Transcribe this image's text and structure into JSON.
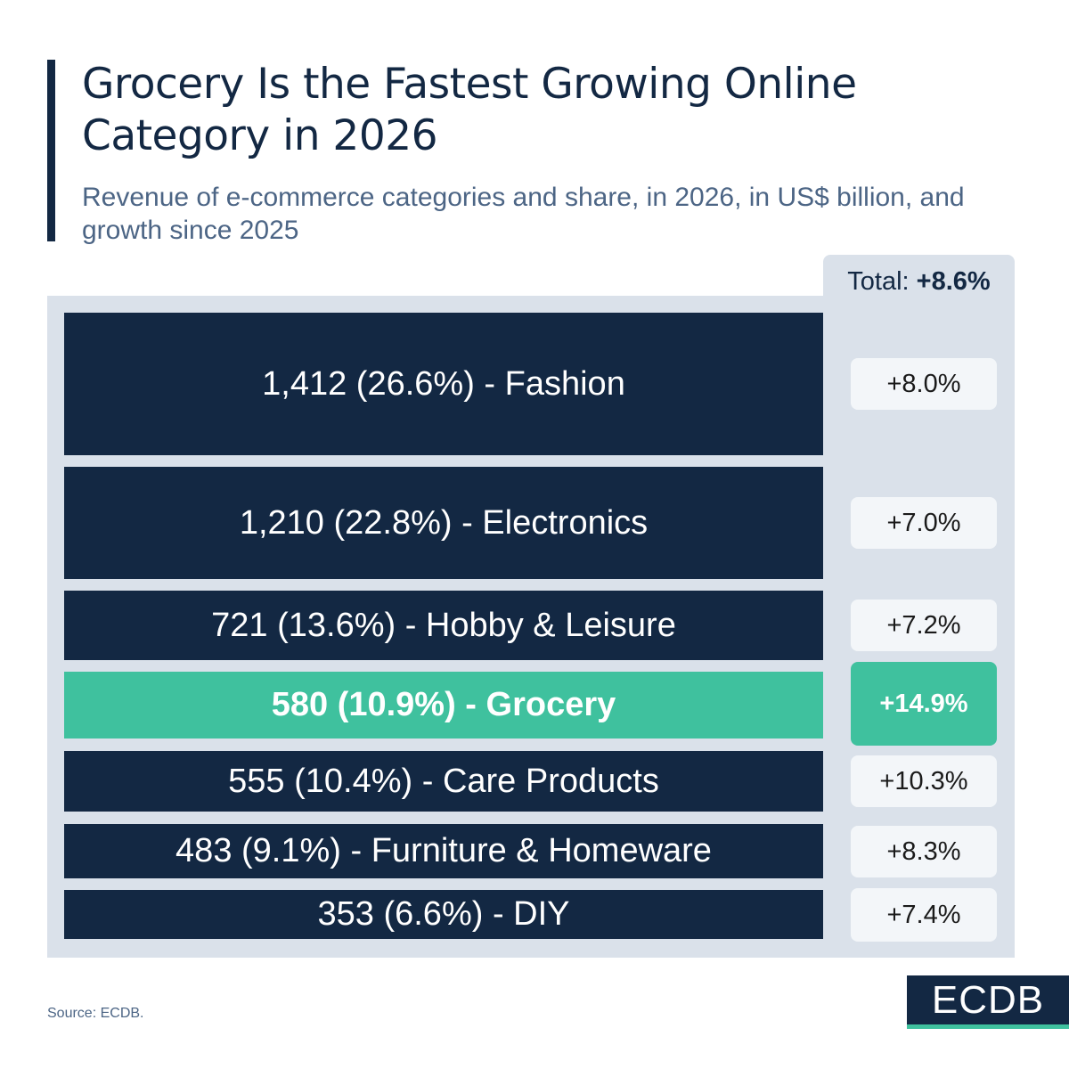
{
  "header": {
    "title": "Grocery Is the Fastest Growing Online Category in 2026",
    "subtitle": "Revenue of e-commerce categories and share, in 2026, in US$ billion, and growth since 2025"
  },
  "total": {
    "label": "Total:",
    "value": "+8.6%"
  },
  "colors": {
    "navy": "#132843",
    "highlight": "#3FC19E",
    "panel": "#DAE1EA",
    "growth_box": "#F3F6F9"
  },
  "chart_data": {
    "type": "bar",
    "title": "Grocery Is the Fastest Growing Online Category in 2026",
    "subtitle": "Revenue of e-commerce categories and share, in 2026, in US$ billion, and growth since 2025",
    "unit": "US$ billion",
    "categories": [
      "Fashion",
      "Electronics",
      "Hobby & Leisure",
      "Grocery",
      "Care Products",
      "Furniture & Homeware",
      "DIY"
    ],
    "series": [
      {
        "name": "Revenue 2026",
        "values": [
          1412,
          1210,
          721,
          580,
          555,
          483,
          353
        ]
      },
      {
        "name": "Share (%)",
        "values": [
          26.6,
          22.8,
          13.6,
          10.9,
          10.4,
          9.1,
          6.6
        ]
      },
      {
        "name": "Growth since 2025 (%)",
        "values": [
          8.0,
          7.0,
          7.2,
          14.9,
          10.3,
          8.3,
          7.4
        ]
      }
    ],
    "highlight": "Grocery",
    "total_growth": 8.6,
    "rows": [
      {
        "label": "1,412 (26.6%) - Fashion",
        "growth": "+8.0%",
        "highlight": false
      },
      {
        "label": "1,210 (22.8%) - Electronics",
        "growth": "+7.0%",
        "highlight": false
      },
      {
        "label": "721 (13.6%) - Hobby & Leisure",
        "growth": "+7.2%",
        "highlight": false
      },
      {
        "label": "580 (10.9%) - Grocery",
        "growth": "+14.9%",
        "highlight": true
      },
      {
        "label": "555 (10.4%) - Care Products",
        "growth": "+10.3%",
        "highlight": false
      },
      {
        "label": "483 (9.1%) - Furniture & Homeware",
        "growth": "+8.3%",
        "highlight": false
      },
      {
        "label": "353 (6.6%) - DIY",
        "growth": "+7.4%",
        "highlight": false
      }
    ]
  },
  "footer": {
    "source": "Source: ECDB.",
    "logo": "ECDB"
  }
}
